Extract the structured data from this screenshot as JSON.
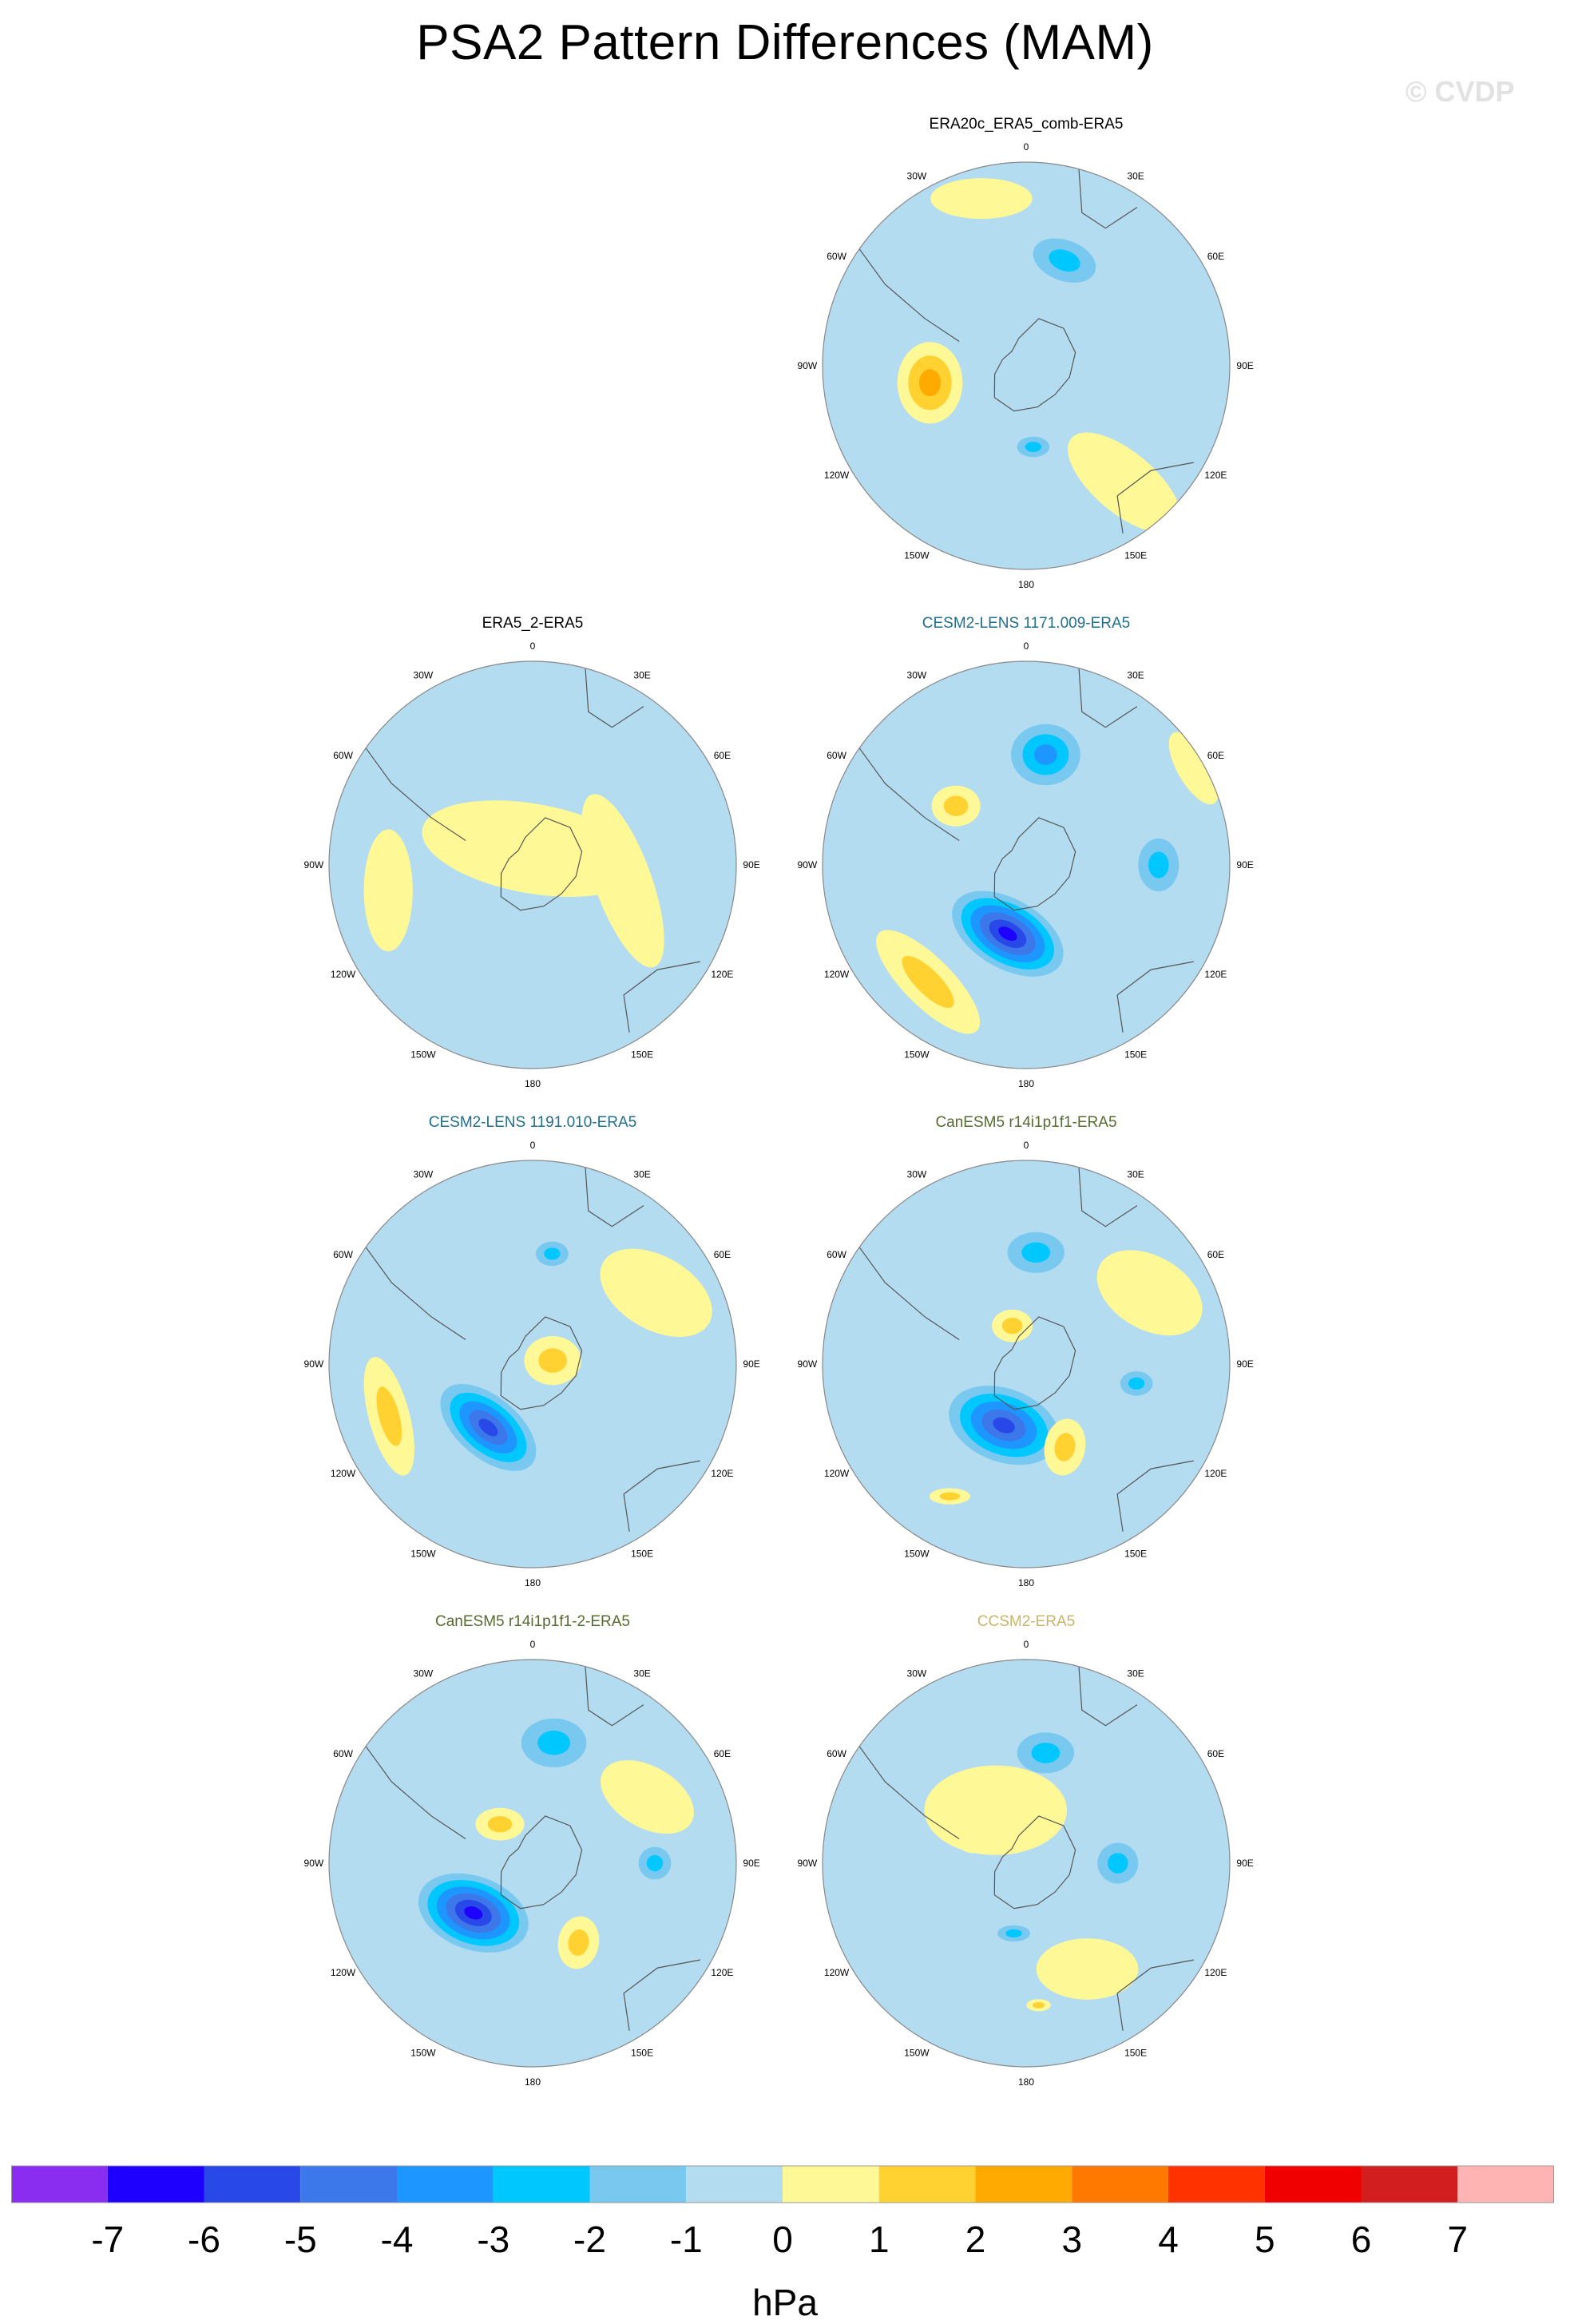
{
  "title": "PSA2 Pattern Differences (MAM)",
  "watermark": "© CVDP",
  "lon_labels": [
    "0",
    "30E",
    "60E",
    "90E",
    "120E",
    "150E",
    "180",
    "150W",
    "120W",
    "90W",
    "60W",
    "30W"
  ],
  "panels": [
    {
      "title": "ERA20c_ERA5_comb-ERA5",
      "title_color": "#000000",
      "anomalies": [
        {
          "lon": -100,
          "r": 0.48,
          "v": 3,
          "rx": 0.2,
          "ry": 0.16,
          "rot": 90
        },
        {
          "lon": 20,
          "r": 0.55,
          "v": -2,
          "rx": 0.16,
          "ry": 0.1,
          "rot": 20
        },
        {
          "lon": 175,
          "r": 0.4,
          "v": -2,
          "rx": 0.08,
          "ry": 0.05,
          "rot": 0
        },
        {
          "lon": 140,
          "r": 0.75,
          "v": 1,
          "rx": 0.34,
          "ry": 0.15,
          "rot": 40
        },
        {
          "lon": -15,
          "r": 0.85,
          "v": 1,
          "rx": 0.25,
          "ry": 0.1,
          "rot": 0
        }
      ]
    },
    {
      "title": "ERA5_2-ERA5",
      "title_color": "#000000",
      "anomalies": [
        {
          "lon": 0,
          "r": 0.08,
          "v": 1,
          "rx": 0.55,
          "ry": 0.22,
          "rot": 10
        },
        {
          "lon": 100,
          "r": 0.45,
          "v": 1,
          "rx": 0.45,
          "ry": 0.14,
          "rot": 70
        },
        {
          "lon": -100,
          "r": 0.72,
          "v": 1,
          "rx": 0.3,
          "ry": 0.12,
          "rot": 90
        }
      ]
    },
    {
      "title": "CESM2-LENS 1171.009-ERA5",
      "title_color": "#1f6f8b",
      "anomalies": [
        {
          "lon": -165,
          "r": 0.35,
          "v": -6,
          "rx": 0.3,
          "ry": 0.17,
          "rot": 30
        },
        {
          "lon": 10,
          "r": 0.55,
          "v": -3,
          "rx": 0.17,
          "ry": 0.15,
          "rot": 0
        },
        {
          "lon": 90,
          "r": 0.65,
          "v": -2,
          "rx": 0.1,
          "ry": 0.13,
          "rot": 0
        },
        {
          "lon": -140,
          "r": 0.75,
          "v": 2,
          "rx": 0.34,
          "ry": 0.12,
          "rot": 45
        },
        {
          "lon": -50,
          "r": 0.45,
          "v": 2,
          "rx": 0.12,
          "ry": 0.1,
          "rot": 0
        },
        {
          "lon": 60,
          "r": 0.95,
          "v": 1,
          "rx": 0.2,
          "ry": 0.08,
          "rot": 60
        }
      ]
    },
    {
      "title": "CESM2-LENS 1191.010-ERA5",
      "title_color": "#1f6f8b",
      "anomalies": [
        {
          "lon": -145,
          "r": 0.38,
          "v": -5,
          "rx": 0.28,
          "ry": 0.15,
          "rot": 40
        },
        {
          "lon": 10,
          "r": 0.55,
          "v": -2,
          "rx": 0.08,
          "ry": 0.06,
          "rot": 0
        },
        {
          "lon": -110,
          "r": 0.75,
          "v": 2,
          "rx": 0.3,
          "ry": 0.1,
          "rot": 75
        },
        {
          "lon": 80,
          "r": 0.1,
          "v": 2,
          "rx": 0.14,
          "ry": 0.12,
          "rot": 0
        },
        {
          "lon": 60,
          "r": 0.7,
          "v": 1,
          "rx": 0.3,
          "ry": 0.18,
          "rot": 30
        }
      ]
    },
    {
      "title": "CanESM5 r14i1p1f1-ERA5",
      "title_color": "#556b2f",
      "anomalies": [
        {
          "lon": -160,
          "r": 0.32,
          "v": -5,
          "rx": 0.28,
          "ry": 0.18,
          "rot": 20
        },
        {
          "lon": 5,
          "r": 0.55,
          "v": -2,
          "rx": 0.14,
          "ry": 0.1,
          "rot": 0
        },
        {
          "lon": 100,
          "r": 0.55,
          "v": -2,
          "rx": 0.08,
          "ry": 0.06,
          "rot": 0
        },
        {
          "lon": 155,
          "r": 0.45,
          "v": 2,
          "rx": 0.1,
          "ry": 0.14,
          "rot": 10
        },
        {
          "lon": -20,
          "r": 0.2,
          "v": 2,
          "rx": 0.1,
          "ry": 0.08,
          "rot": 0
        },
        {
          "lon": -150,
          "r": 0.75,
          "v": 2,
          "rx": 0.1,
          "ry": 0.04,
          "rot": 0
        },
        {
          "lon": 60,
          "r": 0.7,
          "v": 1,
          "rx": 0.28,
          "ry": 0.18,
          "rot": 30
        }
      ]
    },
    {
      "title": "CanESM5 r14i1p1f1-2-ERA5",
      "title_color": "#556b2f",
      "anomalies": [
        {
          "lon": -130,
          "r": 0.38,
          "v": -6,
          "rx": 0.28,
          "ry": 0.18,
          "rot": 20
        },
        {
          "lon": 10,
          "r": 0.6,
          "v": -2,
          "rx": 0.16,
          "ry": 0.12,
          "rot": 0
        },
        {
          "lon": 90,
          "r": 0.6,
          "v": -2,
          "rx": 0.08,
          "ry": 0.08,
          "rot": 0
        },
        {
          "lon": 150,
          "r": 0.45,
          "v": 2,
          "rx": 0.1,
          "ry": 0.13,
          "rot": 10
        },
        {
          "lon": -40,
          "r": 0.25,
          "v": 2,
          "rx": 0.12,
          "ry": 0.08,
          "rot": 0
        },
        {
          "lon": 60,
          "r": 0.65,
          "v": 1,
          "rx": 0.25,
          "ry": 0.15,
          "rot": 30
        }
      ]
    },
    {
      "title": "CCSM2-ERA5",
      "title_color": "#c8b46a",
      "anomalies": [
        {
          "lon": 10,
          "r": 0.55,
          "v": -2,
          "rx": 0.14,
          "ry": 0.1,
          "rot": 0
        },
        {
          "lon": 90,
          "r": 0.45,
          "v": -2,
          "rx": 0.1,
          "ry": 0.1,
          "rot": 0
        },
        {
          "lon": -170,
          "r": 0.35,
          "v": -2,
          "rx": 0.08,
          "ry": 0.04,
          "rot": 0
        },
        {
          "lon": -60,
          "r": 0.3,
          "v": 2,
          "rx": 0.1,
          "ry": 0.1,
          "rot": 0
        },
        {
          "lon": 175,
          "r": 0.7,
          "v": 2,
          "rx": 0.06,
          "ry": 0.03,
          "rot": 0
        },
        {
          "lon": -30,
          "r": 0.3,
          "v": 1,
          "rx": 0.35,
          "ry": 0.22,
          "rot": 0
        },
        {
          "lon": 150,
          "r": 0.6,
          "v": 1,
          "rx": 0.25,
          "ry": 0.15,
          "rot": 0
        }
      ]
    }
  ],
  "colorbar": {
    "colors": [
      "#8b2df0",
      "#1e00ff",
      "#2848e8",
      "#3c78ea",
      "#1e96ff",
      "#00c8ff",
      "#78c8f0",
      "#b4dcf0",
      "#fff896",
      "#ffd232",
      "#ffaa00",
      "#ff7800",
      "#ff3200",
      "#f00000",
      "#d21e1e",
      "#ffb4b4"
    ],
    "labels": [
      "-7",
      "-6",
      "-5",
      "-4",
      "-3",
      "-2",
      "-1",
      "0",
      "1",
      "2",
      "3",
      "4",
      "5",
      "6",
      "7"
    ],
    "units": "hPa"
  }
}
